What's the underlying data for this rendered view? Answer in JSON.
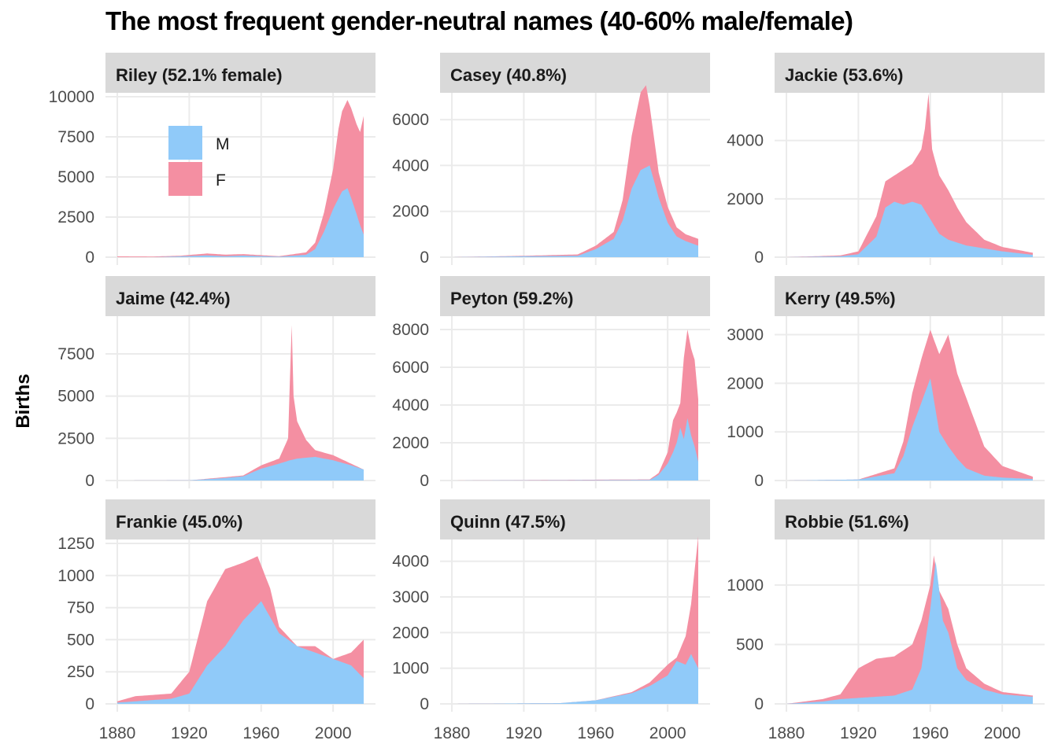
{
  "title": "The most frequent gender-neutral names (40-60% male/female)",
  "y_axis_label": "Births",
  "chart_data": {
    "type": "area",
    "stacked": true,
    "title": "The most frequent gender-neutral names (40-60% male/female)",
    "ylabel": "Births",
    "xlabel": "",
    "xlim": [
      1880,
      2017
    ],
    "x_ticks": [
      1880,
      1920,
      1960,
      2000
    ],
    "colors": {
      "M": "#90CAF9",
      "F": "#F48FA2"
    },
    "legend": {
      "placement": "inside first panel, top-left",
      "entries": [
        "M",
        "F"
      ]
    },
    "panels": [
      {
        "strip": "Riley (52.1% female)",
        "y_ticks": [
          0,
          2500,
          5000,
          7500,
          10000
        ],
        "ylim": [
          0,
          10000
        ],
        "M": [
          [
            1880,
            0
          ],
          [
            1900,
            0
          ],
          [
            1915,
            50
          ],
          [
            1930,
            110
          ],
          [
            1940,
            60
          ],
          [
            1950,
            100
          ],
          [
            1970,
            30
          ],
          [
            1985,
            150
          ],
          [
            1990,
            500
          ],
          [
            1995,
            1600
          ],
          [
            2000,
            3000
          ],
          [
            2005,
            4100
          ],
          [
            2008,
            4300
          ],
          [
            2010,
            3700
          ],
          [
            2013,
            2700
          ],
          [
            2015,
            2000
          ],
          [
            2017,
            1400
          ]
        ],
        "F": [
          [
            1880,
            50
          ],
          [
            1900,
            40
          ],
          [
            1915,
            90
          ],
          [
            1930,
            230
          ],
          [
            1940,
            160
          ],
          [
            1950,
            190
          ],
          [
            1970,
            60
          ],
          [
            1985,
            300
          ],
          [
            1990,
            900
          ],
          [
            1995,
            2800
          ],
          [
            2000,
            5500
          ],
          [
            2003,
            8000
          ],
          [
            2005,
            9100
          ],
          [
            2008,
            9800
          ],
          [
            2010,
            9300
          ],
          [
            2013,
            8300
          ],
          [
            2015,
            7800
          ],
          [
            2017,
            8800
          ]
        ]
      },
      {
        "strip": "Casey (40.8%)",
        "y_ticks": [
          0,
          2000,
          4000,
          6000
        ],
        "ylim": [
          0,
          7000
        ],
        "M": [
          [
            1880,
            0
          ],
          [
            1920,
            40
          ],
          [
            1950,
            60
          ],
          [
            1960,
            350
          ],
          [
            1970,
            800
          ],
          [
            1975,
            1600
          ],
          [
            1980,
            3000
          ],
          [
            1985,
            3800
          ],
          [
            1990,
            4000
          ],
          [
            1995,
            2600
          ],
          [
            2000,
            1500
          ],
          [
            2005,
            900
          ],
          [
            2010,
            700
          ],
          [
            2017,
            500
          ]
        ],
        "F": [
          [
            1880,
            0
          ],
          [
            1920,
            60
          ],
          [
            1950,
            120
          ],
          [
            1960,
            500
          ],
          [
            1970,
            1100
          ],
          [
            1975,
            2500
          ],
          [
            1980,
            5300
          ],
          [
            1985,
            7200
          ],
          [
            1988,
            7500
          ],
          [
            1990,
            6600
          ],
          [
            1995,
            3700
          ],
          [
            2000,
            2200
          ],
          [
            2005,
            1300
          ],
          [
            2010,
            1000
          ],
          [
            2017,
            800
          ]
        ]
      },
      {
        "strip": "Jackie (53.6%)",
        "y_ticks": [
          0,
          2000,
          4000
        ],
        "ylim": [
          0,
          5500
        ],
        "M": [
          [
            1880,
            0
          ],
          [
            1910,
            30
          ],
          [
            1920,
            100
          ],
          [
            1930,
            700
          ],
          [
            1935,
            1700
          ],
          [
            1940,
            1900
          ],
          [
            1945,
            1800
          ],
          [
            1950,
            1900
          ],
          [
            1955,
            1800
          ],
          [
            1960,
            1300
          ],
          [
            1965,
            800
          ],
          [
            1970,
            600
          ],
          [
            1980,
            400
          ],
          [
            1990,
            300
          ],
          [
            2000,
            200
          ],
          [
            2017,
            80
          ]
        ],
        "F": [
          [
            1880,
            0
          ],
          [
            1910,
            60
          ],
          [
            1920,
            200
          ],
          [
            1930,
            1400
          ],
          [
            1935,
            2600
          ],
          [
            1940,
            2800
          ],
          [
            1945,
            3000
          ],
          [
            1950,
            3200
          ],
          [
            1955,
            3700
          ],
          [
            1957,
            4400
          ],
          [
            1959,
            5600
          ],
          [
            1961,
            3700
          ],
          [
            1965,
            2800
          ],
          [
            1970,
            2300
          ],
          [
            1975,
            1700
          ],
          [
            1980,
            1200
          ],
          [
            1990,
            600
          ],
          [
            2000,
            350
          ],
          [
            2017,
            150
          ]
        ]
      },
      {
        "strip": "Jaime (42.4%)",
        "y_ticks": [
          0,
          2500,
          5000,
          7500
        ],
        "ylim": [
          0,
          9500
        ],
        "M": [
          [
            1880,
            0
          ],
          [
            1920,
            10
          ],
          [
            1940,
            150
          ],
          [
            1950,
            250
          ],
          [
            1960,
            700
          ],
          [
            1970,
            1000
          ],
          [
            1976,
            1200
          ],
          [
            1980,
            1300
          ],
          [
            1990,
            1400
          ],
          [
            2000,
            1200
          ],
          [
            2010,
            900
          ],
          [
            2017,
            650
          ]
        ],
        "F": [
          [
            1880,
            0
          ],
          [
            1920,
            10
          ],
          [
            1940,
            200
          ],
          [
            1950,
            300
          ],
          [
            1960,
            900
          ],
          [
            1970,
            1300
          ],
          [
            1975,
            2500
          ],
          [
            1976,
            6000
          ],
          [
            1977,
            9200
          ],
          [
            1978,
            5000
          ],
          [
            1980,
            3500
          ],
          [
            1985,
            2400
          ],
          [
            1990,
            1800
          ],
          [
            2000,
            1500
          ],
          [
            2010,
            1000
          ],
          [
            2017,
            650
          ]
        ]
      },
      {
        "strip": "Peyton (59.2%)",
        "y_ticks": [
          0,
          2000,
          4000,
          6000,
          8000
        ],
        "ylim": [
          0,
          8500
        ],
        "M": [
          [
            1880,
            0
          ],
          [
            1990,
            30
          ],
          [
            1995,
            300
          ],
          [
            2000,
            900
          ],
          [
            2003,
            1500
          ],
          [
            2005,
            2000
          ],
          [
            2007,
            2800
          ],
          [
            2009,
            2200
          ],
          [
            2011,
            3300
          ],
          [
            2013,
            2400
          ],
          [
            2015,
            1800
          ],
          [
            2017,
            1000
          ]
        ],
        "F": [
          [
            1880,
            0
          ],
          [
            1990,
            60
          ],
          [
            1995,
            400
          ],
          [
            2000,
            1500
          ],
          [
            2003,
            3200
          ],
          [
            2005,
            3600
          ],
          [
            2007,
            4100
          ],
          [
            2009,
            6500
          ],
          [
            2011,
            8000
          ],
          [
            2013,
            7000
          ],
          [
            2015,
            6400
          ],
          [
            2017,
            4300
          ]
        ]
      },
      {
        "strip": "Kerry (49.5%)",
        "y_ticks": [
          0,
          1000,
          2000,
          3000
        ],
        "ylim": [
          0,
          3300
        ],
        "M": [
          [
            1880,
            0
          ],
          [
            1920,
            20
          ],
          [
            1940,
            150
          ],
          [
            1945,
            500
          ],
          [
            1950,
            1100
          ],
          [
            1955,
            1600
          ],
          [
            1960,
            2100
          ],
          [
            1965,
            1000
          ],
          [
            1970,
            700
          ],
          [
            1975,
            450
          ],
          [
            1980,
            250
          ],
          [
            1990,
            100
          ],
          [
            2000,
            60
          ],
          [
            2017,
            30
          ]
        ],
        "F": [
          [
            1880,
            0
          ],
          [
            1920,
            20
          ],
          [
            1940,
            250
          ],
          [
            1945,
            800
          ],
          [
            1950,
            1800
          ],
          [
            1955,
            2500
          ],
          [
            1960,
            3100
          ],
          [
            1965,
            2600
          ],
          [
            1970,
            3000
          ],
          [
            1975,
            2200
          ],
          [
            1980,
            1700
          ],
          [
            1985,
            1200
          ],
          [
            1990,
            700
          ],
          [
            2000,
            300
          ],
          [
            2017,
            80
          ]
        ]
      },
      {
        "strip": "Frankie (45.0%)",
        "y_ticks": [
          0,
          250,
          500,
          750,
          1000,
          1250
        ],
        "ylim": [
          0,
          1250
        ],
        "M": [
          [
            1880,
            10
          ],
          [
            1890,
            20
          ],
          [
            1910,
            40
          ],
          [
            1920,
            80
          ],
          [
            1930,
            300
          ],
          [
            1940,
            450
          ],
          [
            1950,
            650
          ],
          [
            1960,
            800
          ],
          [
            1970,
            550
          ],
          [
            1980,
            450
          ],
          [
            1990,
            400
          ],
          [
            2000,
            350
          ],
          [
            2010,
            300
          ],
          [
            2017,
            200
          ]
        ],
        "F": [
          [
            1880,
            20
          ],
          [
            1890,
            60
          ],
          [
            1910,
            80
          ],
          [
            1920,
            250
          ],
          [
            1930,
            800
          ],
          [
            1940,
            1050
          ],
          [
            1950,
            1100
          ],
          [
            1958,
            1150
          ],
          [
            1965,
            900
          ],
          [
            1970,
            600
          ],
          [
            1980,
            450
          ],
          [
            1990,
            450
          ],
          [
            2000,
            350
          ],
          [
            2010,
            400
          ],
          [
            2017,
            500
          ]
        ]
      },
      {
        "strip": "Quinn (47.5%)",
        "y_ticks": [
          0,
          1000,
          2000,
          3000,
          4000
        ],
        "ylim": [
          0,
          4500
        ],
        "M": [
          [
            1880,
            0
          ],
          [
            1940,
            20
          ],
          [
            1960,
            100
          ],
          [
            1980,
            300
          ],
          [
            1990,
            500
          ],
          [
            2000,
            800
          ],
          [
            2005,
            1200
          ],
          [
            2010,
            1100
          ],
          [
            2013,
            1400
          ],
          [
            2017,
            1000
          ]
        ],
        "F": [
          [
            1880,
            0
          ],
          [
            1940,
            20
          ],
          [
            1960,
            100
          ],
          [
            1980,
            330
          ],
          [
            1990,
            600
          ],
          [
            2000,
            1100
          ],
          [
            2005,
            1300
          ],
          [
            2010,
            1900
          ],
          [
            2013,
            2800
          ],
          [
            2017,
            4700
          ]
        ]
      },
      {
        "strip": "Robbie (51.6%)",
        "y_ticks": [
          0,
          500,
          1000
        ],
        "ylim": [
          0,
          1350
        ],
        "M": [
          [
            1880,
            0
          ],
          [
            1900,
            20
          ],
          [
            1910,
            40
          ],
          [
            1920,
            50
          ],
          [
            1940,
            70
          ],
          [
            1950,
            120
          ],
          [
            1955,
            300
          ],
          [
            1960,
            800
          ],
          [
            1963,
            1200
          ],
          [
            1967,
            700
          ],
          [
            1970,
            600
          ],
          [
            1975,
            300
          ],
          [
            1980,
            200
          ],
          [
            1990,
            120
          ],
          [
            2000,
            80
          ],
          [
            2017,
            60
          ]
        ],
        "F": [
          [
            1880,
            0
          ],
          [
            1900,
            40
          ],
          [
            1910,
            80
          ],
          [
            1920,
            300
          ],
          [
            1930,
            380
          ],
          [
            1940,
            400
          ],
          [
            1950,
            500
          ],
          [
            1955,
            700
          ],
          [
            1960,
            1000
          ],
          [
            1962,
            1250
          ],
          [
            1965,
            950
          ],
          [
            1970,
            800
          ],
          [
            1975,
            500
          ],
          [
            1980,
            300
          ],
          [
            1990,
            170
          ],
          [
            2000,
            100
          ],
          [
            2017,
            70
          ]
        ]
      }
    ]
  }
}
